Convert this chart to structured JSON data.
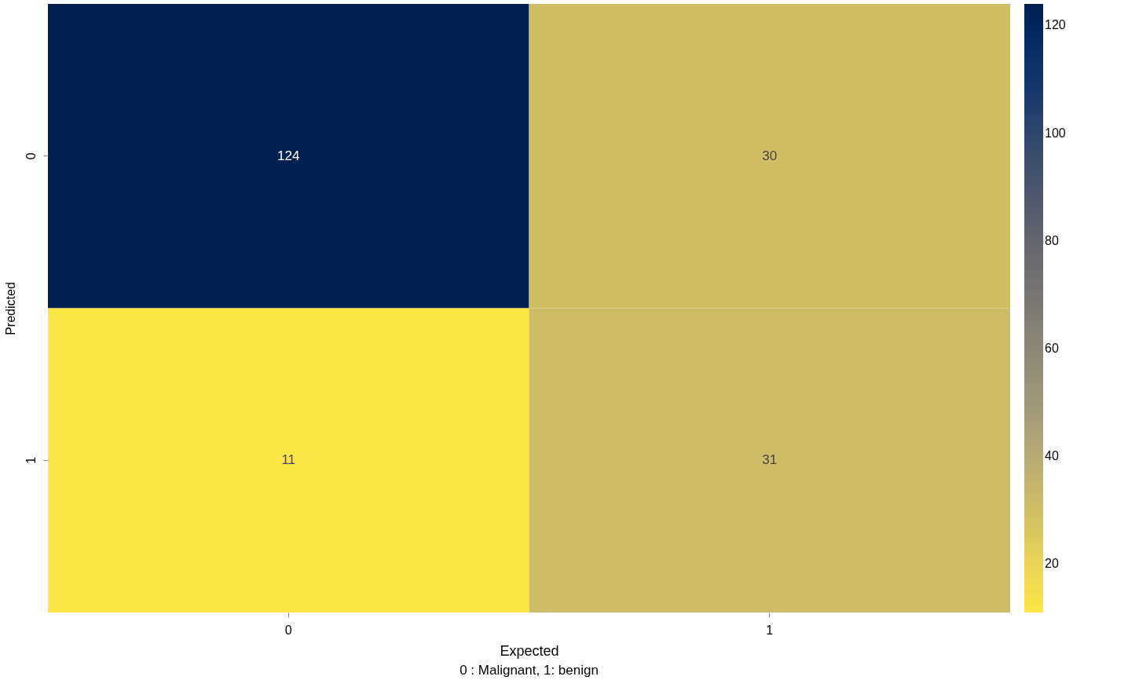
{
  "chart_data": {
    "type": "heatmap",
    "xlabel": "Expected",
    "ylabel": "Predicted",
    "categories": [
      "0",
      "1"
    ],
    "y_categories": [
      "0",
      "1"
    ],
    "cells": [
      [
        124,
        30
      ],
      [
        11,
        31
      ]
    ],
    "clim": [
      11,
      124
    ],
    "cticks": [
      20,
      40,
      60,
      80,
      100,
      120
    ],
    "data_labels": true,
    "annotations": [
      "0 : Malignant, 1: benign"
    ]
  }
}
